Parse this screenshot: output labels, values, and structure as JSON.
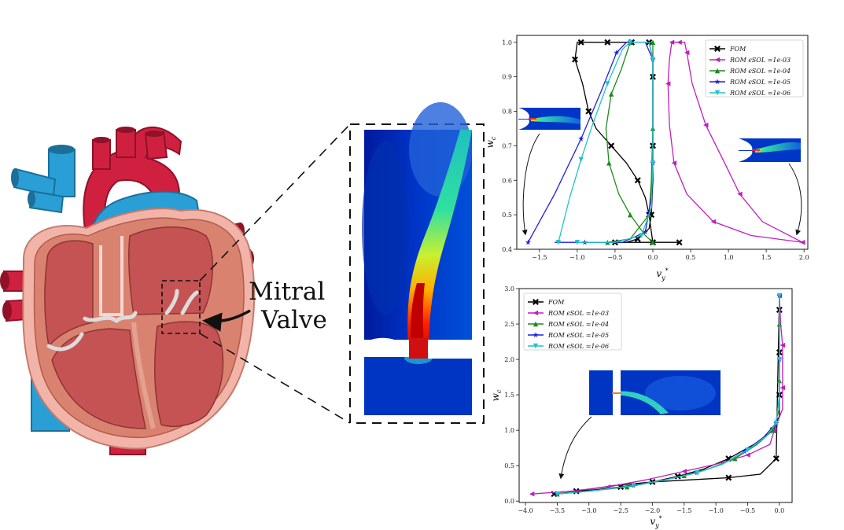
{
  "annotation": {
    "line1": "Mitral",
    "line2": "Valve"
  },
  "colors": {
    "FOM": "#000000",
    "ROM1": "#bf1fbf",
    "ROM2": "#1d8a1d",
    "ROM3": "#1f1fe6",
    "ROM4": "#21c4c4"
  },
  "chart_data": [
    {
      "type": "line",
      "xlabel": "v_y^*",
      "ylabel": "w_c",
      "xlim": [
        -1.8,
        2.05
      ],
      "ylim": [
        0.4,
        1.02
      ],
      "xticks": [
        -1.5,
        -1.0,
        -0.5,
        0.0,
        0.5,
        1.0,
        1.5,
        2.0
      ],
      "xticklabels": [
        "−1.5",
        "−1.0",
        "−0.5",
        "0.0",
        "0.5",
        "1.0",
        "1.5",
        "2.0"
      ],
      "yticks": [
        0.4,
        0.5,
        0.6,
        0.7,
        0.8,
        0.9,
        1.0
      ],
      "yticklabels": [
        "0.4",
        "0.5",
        "0.6",
        "0.7",
        "0.8",
        "0.9",
        "1.0"
      ],
      "legend": [
        "FOM",
        "ROM ϵSOL =1e-03",
        "ROM ϵSOL =1e-04",
        "ROM ϵSOL =1e-05",
        "ROM ϵSOL =1e-06"
      ],
      "legend_position": "top-right",
      "series": [
        {
          "name": "FOM",
          "marker": "x",
          "x": [
            0.0,
            -0.02,
            -0.05,
            -0.1,
            -0.2,
            -0.35,
            -0.55,
            -0.75,
            -0.85,
            -0.93,
            -1.03,
            -1.0,
            -0.95,
            -0.82,
            -0.6,
            -0.42,
            -0.28,
            -0.22,
            -0.05,
            0.0,
            0.0,
            0.0,
            0.0,
            0.0,
            -0.02,
            -0.05,
            -0.2,
            -0.35,
            -0.5,
            -0.7,
            0.0,
            0.2,
            0.35
          ],
          "y": [
            0.42,
            0.45,
            0.5,
            0.55,
            0.6,
            0.65,
            0.7,
            0.75,
            0.8,
            0.88,
            0.95,
            1.0,
            1.0,
            1.0,
            1.0,
            1.0,
            1.0,
            1.0,
            1.0,
            0.95,
            0.9,
            0.8,
            0.7,
            0.6,
            0.5,
            0.46,
            0.43,
            0.42,
            0.42,
            0.42,
            0.42,
            0.42,
            0.42
          ]
        },
        {
          "name": "ROM ϵSOL =1e-03",
          "marker": "<",
          "x": [
            1.98,
            1.45,
            1.15,
            0.95,
            0.7,
            0.52,
            0.45,
            0.42,
            0.35,
            0.3,
            0.25,
            0.22,
            0.2,
            0.22,
            0.28,
            0.45,
            0.8,
            1.3,
            1.98
          ],
          "y": [
            0.42,
            0.48,
            0.56,
            0.65,
            0.76,
            0.88,
            0.97,
            1.0,
            1.0,
            1.0,
            1.0,
            0.95,
            0.88,
            0.76,
            0.65,
            0.56,
            0.48,
            0.44,
            0.42
          ]
        },
        {
          "name": "ROM ϵSOL =1e-04",
          "marker": "^",
          "x": [
            0.0,
            -0.1,
            -0.3,
            -0.45,
            -0.58,
            -0.62,
            -0.55,
            -0.42,
            -0.3,
            -0.1,
            0.0,
            0.0,
            0.0,
            -0.02,
            -0.05,
            -0.3,
            -0.6,
            -0.9
          ],
          "y": [
            0.42,
            0.44,
            0.5,
            0.56,
            0.65,
            0.75,
            0.85,
            0.92,
            1.0,
            1.0,
            1.0,
            0.9,
            0.75,
            0.6,
            0.5,
            0.43,
            0.42,
            0.42
          ]
        },
        {
          "name": "ROM ϵSOL =1e-05",
          "marker": "*",
          "x": [
            -1.65,
            -1.3,
            -0.95,
            -0.68,
            -0.48,
            -0.35,
            -0.3,
            -0.1,
            0.0,
            0.0,
            0.0,
            -0.02,
            -0.1,
            -0.4,
            -0.9,
            -1.3
          ],
          "y": [
            0.42,
            0.56,
            0.72,
            0.86,
            0.97,
            1.0,
            1.0,
            1.0,
            0.95,
            0.8,
            0.65,
            0.55,
            0.45,
            0.42,
            0.42,
            0.42
          ]
        },
        {
          "name": "ROM ϵSOL =1e-06",
          "marker": "v",
          "x": [
            -1.25,
            -1.1,
            -0.95,
            -0.8,
            -0.6,
            -0.4,
            -0.3,
            -0.05,
            0.0,
            0.0,
            0.0,
            -0.02,
            -0.15,
            -0.5,
            -1.0
          ],
          "y": [
            0.42,
            0.55,
            0.66,
            0.76,
            0.88,
            0.98,
            1.0,
            1.0,
            0.95,
            0.8,
            0.65,
            0.52,
            0.44,
            0.42,
            0.42
          ]
        }
      ]
    },
    {
      "type": "line",
      "xlabel": "v_y^*",
      "ylabel": "w_c",
      "xlim": [
        -4.1,
        0.2
      ],
      "ylim": [
        -0.02,
        3.0
      ],
      "xticks": [
        -4.0,
        -3.5,
        -3.0,
        -2.5,
        -2.0,
        -1.5,
        -1.0,
        -0.5,
        0.0
      ],
      "xticklabels": [
        "−4.0",
        "−3.5",
        "−3.0",
        "−2.5",
        "−2.0",
        "−1.5",
        "−1.0",
        "−0.5",
        "0.0"
      ],
      "yticks": [
        0.0,
        0.5,
        1.0,
        1.5,
        2.0,
        2.5,
        3.0
      ],
      "yticklabels": [
        "0.0",
        "0.5",
        "1.0",
        "1.5",
        "2.0",
        "2.5",
        "3.0"
      ],
      "legend": [
        "FOM",
        "ROM ϵSOL =1e-03",
        "ROM ϵSOL =1e-04",
        "ROM ϵSOL =1e-05",
        "ROM ϵSOL =1e-06"
      ],
      "legend_position": "top-left",
      "series": [
        {
          "name": "FOM",
          "marker": "x",
          "x": [
            -3.55,
            -3.0,
            -2.5,
            -2.0,
            -1.6,
            -1.2,
            -0.8,
            -0.4,
            -0.1,
            0.0,
            0.0,
            0.0,
            0.0,
            0.0,
            0.0,
            0.0,
            -0.05,
            -0.3,
            -0.8,
            -1.4,
            -2.0,
            -2.6,
            -3.2
          ],
          "y": [
            0.1,
            0.15,
            0.2,
            0.27,
            0.35,
            0.45,
            0.6,
            0.8,
            1.0,
            1.2,
            1.5,
            1.8,
            2.1,
            2.4,
            2.7,
            2.9,
            0.6,
            0.38,
            0.33,
            0.3,
            0.27,
            0.22,
            0.14
          ]
        },
        {
          "name": "ROM ϵSOL =1e-03",
          "marker": "<",
          "x": [
            -3.9,
            -3.3,
            -2.7,
            -2.1,
            -1.5,
            -1.0,
            -0.5,
            -0.15,
            -0.08,
            0.05,
            0.05,
            0.05,
            0.05,
            0.02,
            0.0
          ],
          "y": [
            0.1,
            0.14,
            0.2,
            0.3,
            0.42,
            0.52,
            0.65,
            0.8,
            1.0,
            1.3,
            1.6,
            1.9,
            2.2,
            2.5,
            2.9
          ]
        },
        {
          "name": "ROM ϵSOL =1e-04",
          "marker": "^",
          "x": [
            -3.5,
            -3.0,
            -2.4,
            -1.9,
            -1.5,
            -1.1,
            -0.7,
            -0.35,
            -0.1,
            0.0,
            0.0,
            0.0,
            0.0,
            0.0
          ],
          "y": [
            0.1,
            0.14,
            0.2,
            0.28,
            0.36,
            0.46,
            0.6,
            0.8,
            1.0,
            1.3,
            1.7,
            2.1,
            2.5,
            2.9
          ]
        },
        {
          "name": "ROM ϵSOL =1e-05",
          "marker": "*",
          "x": [
            -3.5,
            -2.9,
            -2.3,
            -1.8,
            -1.3,
            -0.9,
            -0.55,
            -0.25,
            -0.05,
            0.0,
            0.0,
            0.0,
            0.0
          ],
          "y": [
            0.1,
            0.15,
            0.22,
            0.3,
            0.4,
            0.52,
            0.7,
            0.9,
            1.1,
            1.5,
            2.0,
            2.5,
            2.9
          ]
        },
        {
          "name": "ROM ϵSOL =1e-06",
          "marker": "v",
          "x": [
            -3.5,
            -2.9,
            -2.3,
            -1.8,
            -1.3,
            -0.9,
            -0.5,
            -0.2,
            -0.05,
            0.0,
            0.0,
            0.0,
            0.0
          ],
          "y": [
            0.1,
            0.15,
            0.22,
            0.3,
            0.4,
            0.52,
            0.72,
            0.92,
            1.1,
            1.5,
            2.0,
            2.5,
            2.9
          ]
        }
      ]
    }
  ]
}
